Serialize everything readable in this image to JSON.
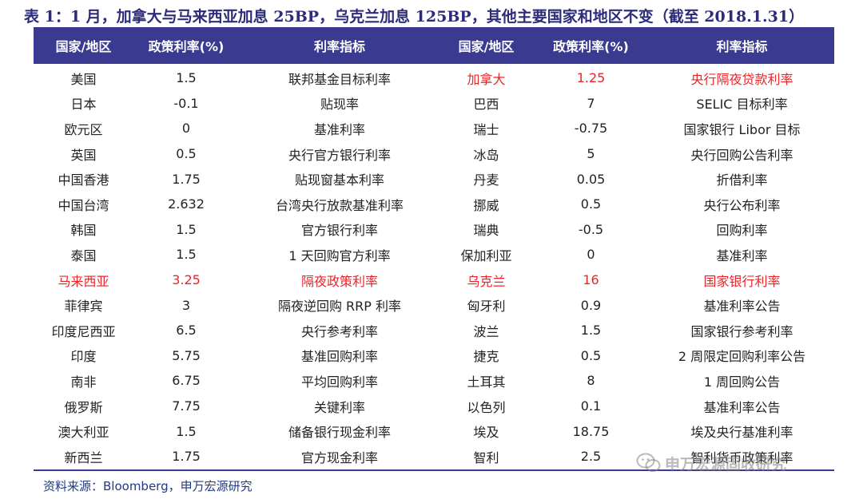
{
  "title": "表 1：1 月，加拿大与马来西亚加息 25BP，乌克兰加息 125BP，其他主要国家和地区不变（截至 2018.1.31）",
  "headers": [
    "国家/地区",
    "政策利率(%)",
    "利率指标",
    "国家/地区",
    "政策利率(%)",
    "利率指标"
  ],
  "rows": [
    [
      "美国",
      "1.5",
      "联邦基金目标利率",
      "加拿大",
      "1.25",
      "央行隔夜贷款利率"
    ],
    [
      "日本",
      "-0.1",
      "贴现率",
      "巴西",
      "7",
      "SELIC 目标利率"
    ],
    [
      "欧元区",
      "0",
      "基准利率",
      "瑞士",
      "-0.75",
      "国家银行 Libor 目标"
    ],
    [
      "英国",
      "0.5",
      "央行官方银行利率",
      "冰岛",
      "5",
      "央行回购公告利率"
    ],
    [
      "中国香港",
      "1.75",
      "贴现窗基本利率",
      "丹麦",
      "0.05",
      "折借利率"
    ],
    [
      "中国台湾",
      "2.632",
      "台湾央行放款基准利率",
      "挪威",
      "0.5",
      "央行公布利率"
    ],
    [
      "韩国",
      "1.5",
      "官方银行利率",
      "瑞典",
      "-0.5",
      "回购利率"
    ],
    [
      "泰国",
      "1.5",
      "1 天回购官方利率",
      "保加利亚",
      "0",
      "基准利率"
    ],
    [
      "马来西亚",
      "3.25",
      "隔夜政策利率",
      "乌克兰",
      "16",
      "国家银行利率"
    ],
    [
      "菲律宾",
      "3",
      "隔夜逆回购 RRP 利率",
      "匈牙利",
      "0.9",
      "基准利率公告"
    ],
    [
      "印度尼西亚",
      "6.5",
      "央行参考利率",
      "波兰",
      "1.5",
      "国家银行参考利率"
    ],
    [
      "印度",
      "5.75",
      "基准回购利率",
      "捷克",
      "0.5",
      "2 周限定回购利率公告"
    ],
    [
      "南非",
      "6.75",
      "平均回购利率",
      "土耳其",
      "8",
      "1 周回购公告"
    ],
    [
      "俄罗斯",
      "7.75",
      "关键利率",
      "以色列",
      "0.1",
      "基准利率公告"
    ],
    [
      "澳大利亚",
      "1.5",
      "储备银行现金利率",
      "埃及",
      "18.75",
      "埃及央行基准利率"
    ],
    [
      "新西兰",
      "1.75",
      "官方现金利率",
      "智利",
      "2.5",
      "智利货币政策利率"
    ]
  ],
  "highlight": {
    "color": "#e8262a",
    "cells": [
      [
        0,
        3
      ],
      [
        0,
        4
      ],
      [
        0,
        5
      ],
      [
        8,
        0
      ],
      [
        8,
        1
      ],
      [
        8,
        2
      ],
      [
        8,
        3
      ],
      [
        8,
        4
      ],
      [
        8,
        5
      ]
    ]
  },
  "source": "资料来源：Bloomberg，申万宏源研究",
  "watermark": "申万宏源固收研究",
  "colors": {
    "header_bg": "#3a3a91",
    "title": "#2c2c7a",
    "source": "#1f3a86"
  }
}
